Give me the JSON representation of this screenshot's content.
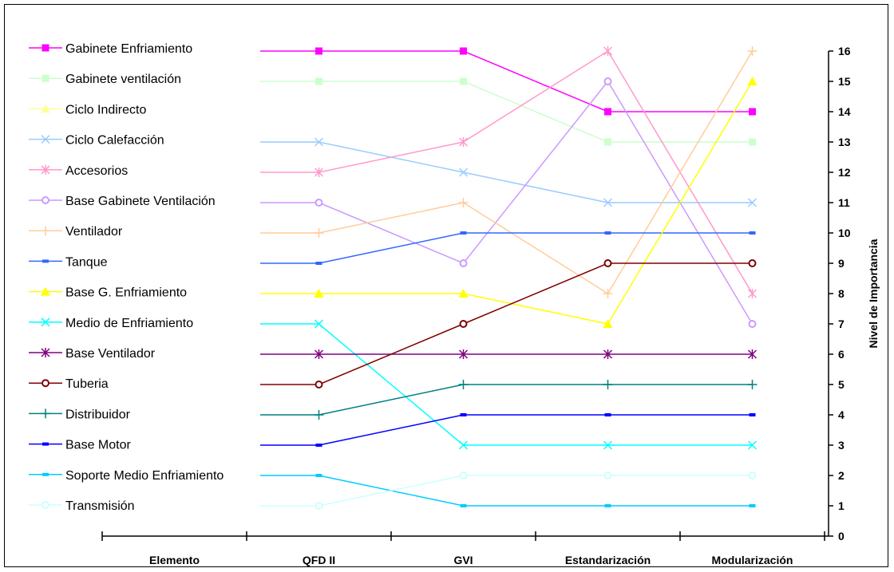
{
  "chart_data": {
    "type": "line",
    "categories": [
      "Elemento",
      "QFD II",
      "GVI",
      "Estandarización",
      "Modularización"
    ],
    "ylabel": "Nivel de Importancia",
    "ylim": [
      0,
      16
    ],
    "yticks": [
      0,
      1,
      2,
      3,
      4,
      5,
      6,
      7,
      8,
      9,
      10,
      11,
      12,
      13,
      14,
      15,
      16
    ],
    "legend_position": "left",
    "grid": false,
    "series": [
      {
        "name": "Gabinete Enfriamiento",
        "color": "#FF00FF",
        "marker": "square",
        "values": [
          16,
          16,
          16,
          14,
          14
        ]
      },
      {
        "name": "Gabinete ventilación",
        "color": "#CCFFCC",
        "marker": "square",
        "values": [
          15,
          15,
          15,
          13,
          13
        ]
      },
      {
        "name": "Ciclo Indirecto",
        "color": "#FFFF99",
        "marker": "triangle",
        "values": [
          null,
          null,
          null,
          null,
          null
        ]
      },
      {
        "name": "Ciclo Calefacción",
        "color": "#99CCFF",
        "marker": "x",
        "values": [
          13,
          13,
          12,
          11,
          11
        ]
      },
      {
        "name": "Accesorios",
        "color": "#FF99CC",
        "marker": "star",
        "values": [
          12,
          12,
          13,
          16,
          8
        ]
      },
      {
        "name": "Base Gabinete Ventilación",
        "color": "#CC99FF",
        "marker": "circle",
        "values": [
          11,
          11,
          9,
          15,
          7
        ]
      },
      {
        "name": "Ventilador",
        "color": "#FFCC99",
        "marker": "plus",
        "values": [
          10,
          10,
          11,
          8,
          16
        ]
      },
      {
        "name": "Tanque",
        "color": "#3366FF",
        "marker": "dash",
        "values": [
          9,
          9,
          10,
          10,
          10
        ]
      },
      {
        "name": "Base G. Enfriamiento",
        "color": "#FFFF00",
        "marker": "triangle",
        "values": [
          8,
          8,
          8,
          7,
          15
        ]
      },
      {
        "name": "Medio de Enfriamiento",
        "color": "#00FFFF",
        "marker": "x",
        "values": [
          7,
          7,
          3,
          3,
          3
        ]
      },
      {
        "name": "Base Ventilador",
        "color": "#800080",
        "marker": "star",
        "values": [
          6,
          6,
          6,
          6,
          6
        ]
      },
      {
        "name": "Tuberia",
        "color": "#800000",
        "marker": "circle",
        "values": [
          5,
          5,
          7,
          9,
          9
        ]
      },
      {
        "name": "Distribuidor",
        "color": "#008080",
        "marker": "plus",
        "values": [
          4,
          4,
          5,
          5,
          5
        ]
      },
      {
        "name": "Base Motor",
        "color": "#0000FF",
        "marker": "dash",
        "values": [
          3,
          3,
          4,
          4,
          4
        ]
      },
      {
        "name": "Soporte Medio Enfriamiento",
        "color": "#00CCFF",
        "marker": "dash",
        "values": [
          2,
          2,
          1,
          1,
          1
        ]
      },
      {
        "name": "Transmisión",
        "color": "#CCFFFF",
        "marker": "circle",
        "values": [
          1,
          1,
          2,
          2,
          2
        ]
      }
    ]
  }
}
